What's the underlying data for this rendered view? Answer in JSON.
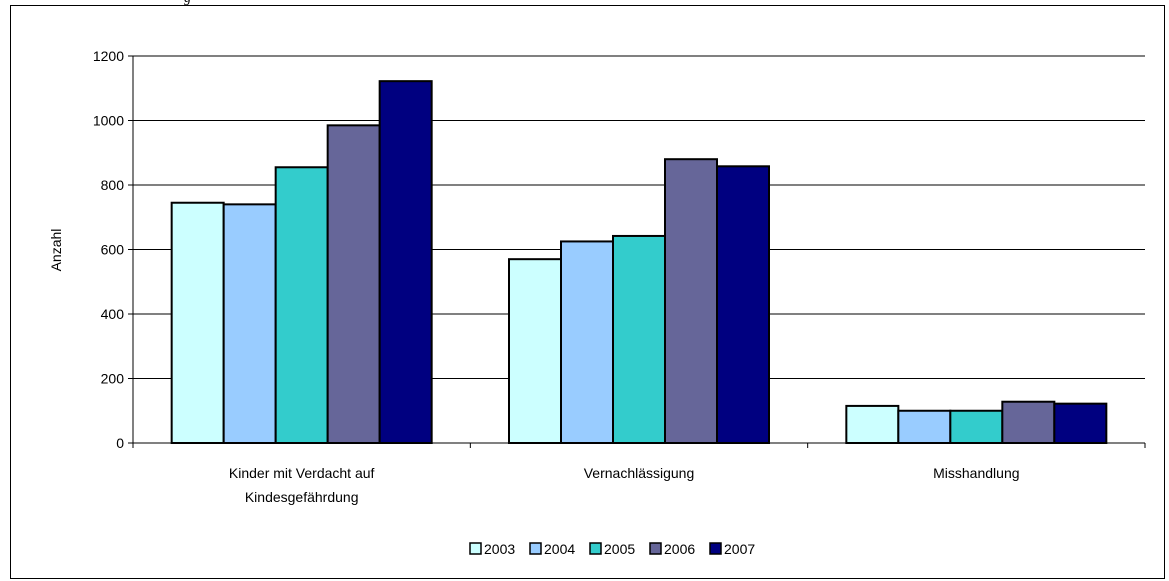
{
  "header_fragment": "g",
  "chart_data": {
    "type": "bar",
    "title": "",
    "xlabel": "",
    "ylabel": "Anzahl",
    "ylim": [
      0,
      1200
    ],
    "yticks": [
      0,
      200,
      400,
      600,
      800,
      1000,
      1200
    ],
    "grid": true,
    "legend_position": "bottom",
    "categories": [
      [
        "Kinder mit Verdacht auf",
        "Kindesgefährdung"
      ],
      [
        "Vernachlässigung"
      ],
      [
        "Misshandlung"
      ]
    ],
    "series": [
      {
        "name": "2003",
        "color": "#ccffff",
        "values": [
          745,
          570,
          115
        ]
      },
      {
        "name": "2004",
        "color": "#99ccff",
        "values": [
          740,
          625,
          100
        ]
      },
      {
        "name": "2005",
        "color": "#33cccc",
        "values": [
          855,
          642,
          100
        ]
      },
      {
        "name": "2006",
        "color": "#666699",
        "values": [
          985,
          880,
          128
        ]
      },
      {
        "name": "2007",
        "color": "#000080",
        "values": [
          1122,
          858,
          122
        ]
      }
    ]
  }
}
